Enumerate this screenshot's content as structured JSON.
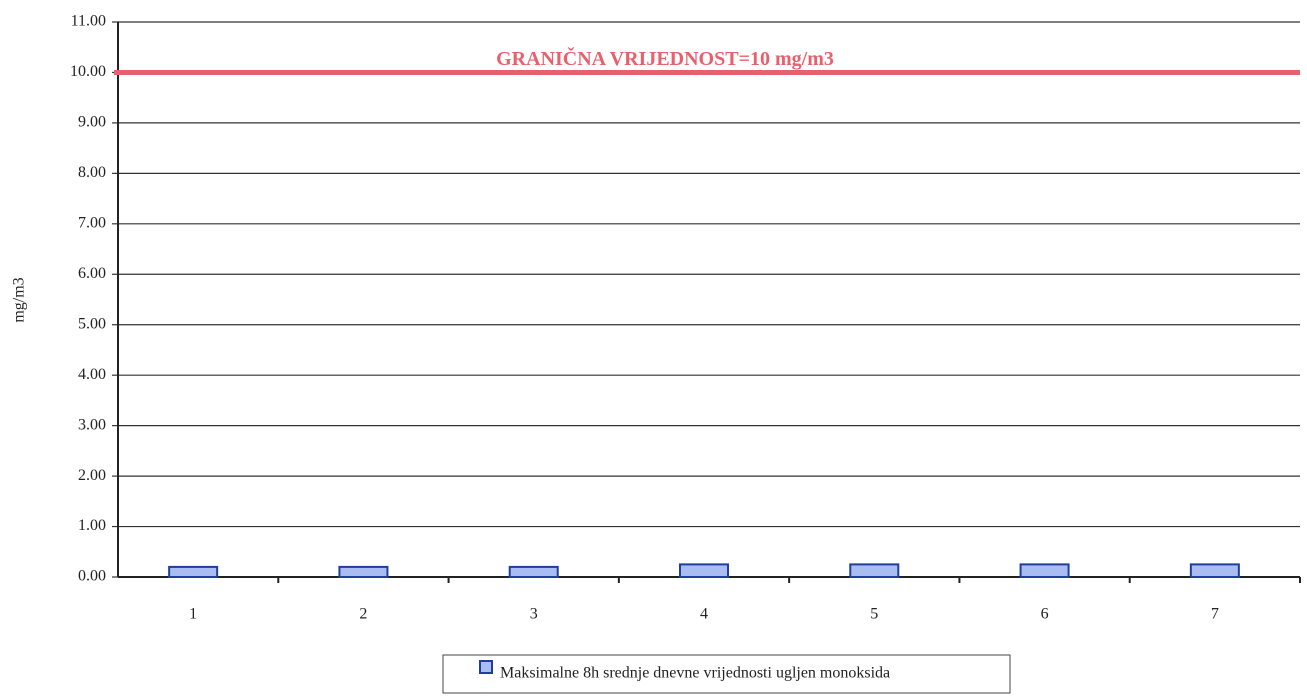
{
  "chart_data": {
    "type": "bar",
    "y_label": "mg/m3",
    "annotation": "GRANIČNA VRIJEDNOST=10 mg/m3",
    "threshold": 10,
    "threshold_color": "#e8606e",
    "categories": [
      "1",
      "2",
      "3",
      "4",
      "5",
      "6",
      "7"
    ],
    "series": [
      {
        "name": "Maksimalne 8h srednje dnevne vrijednosti ugljen monoksida",
        "color": "#a9bdf2",
        "values": [
          0.2,
          0.2,
          0.2,
          0.25,
          0.25,
          0.25,
          0.25
        ]
      }
    ],
    "ylim": [
      0,
      11
    ],
    "yticks": [
      {
        "value": 0,
        "label": "0.00"
      },
      {
        "value": 1,
        "label": "1.00"
      },
      {
        "value": 2,
        "label": "2.00"
      },
      {
        "value": 3,
        "label": "3.00"
      },
      {
        "value": 4,
        "label": "4.00"
      },
      {
        "value": 5,
        "label": "5.00"
      },
      {
        "value": 6,
        "label": "6.00"
      },
      {
        "value": 7,
        "label": "7.00"
      },
      {
        "value": 8,
        "label": "8.00"
      },
      {
        "value": 9,
        "label": "9.00"
      },
      {
        "value": 10,
        "label": "10.00"
      },
      {
        "value": 11,
        "label": "11.00"
      }
    ],
    "grid": true
  }
}
